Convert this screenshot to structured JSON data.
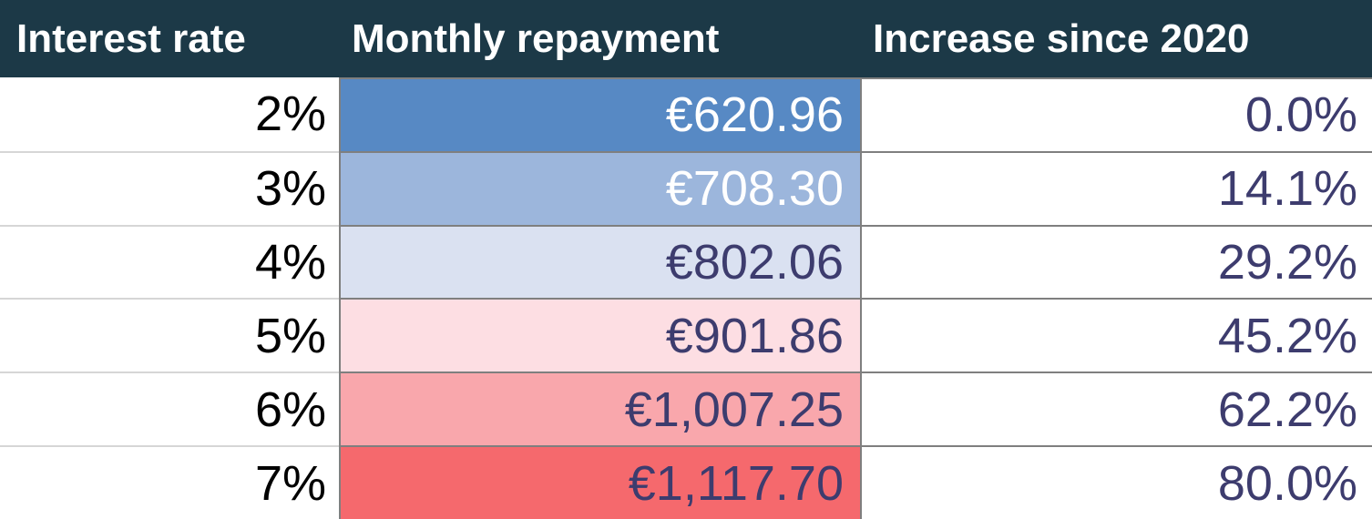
{
  "table": {
    "headers": {
      "rate": "Interest rate",
      "repayment": "Monthly repayment",
      "increase": "Increase since 2020"
    },
    "rows": [
      {
        "rate": "2%",
        "repayment": "€620.96",
        "increase": "0.0%",
        "bg": "#5789c4",
        "text": "#ffffff"
      },
      {
        "rate": "3%",
        "repayment": "€708.30",
        "increase": "14.1%",
        "bg": "#9cb6dc",
        "text": "#ffffff"
      },
      {
        "rate": "4%",
        "repayment": "€802.06",
        "increase": "29.2%",
        "bg": "#dae1f1",
        "text": "#3d3c6e"
      },
      {
        "rate": "5%",
        "repayment": "€901.86",
        "increase": "45.2%",
        "bg": "#fddee3",
        "text": "#3d3c6e"
      },
      {
        "rate": "6%",
        "repayment": "€1,007.25",
        "increase": "62.2%",
        "bg": "#f9a7ac",
        "text": "#3d3c6e"
      },
      {
        "rate": "7%",
        "repayment": "€1,117.70",
        "increase": "80.0%",
        "bg": "#f5696d",
        "text": "#3d3c6e"
      }
    ],
    "colors": {
      "header_bg": "#1c3947",
      "header_text": "#ffffff",
      "rate_text": "#000000",
      "increase_text": "#3d3c6e",
      "cell_border": "#7f7f7f",
      "row_divider": "#d6d6d6"
    }
  },
  "chart_data": {
    "type": "table",
    "title": "",
    "columns": [
      "Interest rate",
      "Monthly repayment",
      "Increase since 2020"
    ],
    "interest_rate_pct": [
      2,
      3,
      4,
      5,
      6,
      7
    ],
    "monthly_repayment_eur": [
      620.96,
      708.3,
      802.06,
      901.86,
      1007.25,
      1117.7
    ],
    "increase_since_2020_pct": [
      0.0,
      14.1,
      29.2,
      45.2,
      62.2,
      80.0
    ],
    "heatmap_column": "Monthly repayment",
    "heatmap_scale": [
      "#5789c4",
      "#9cb6dc",
      "#dae1f1",
      "#fddee3",
      "#f9a7ac",
      "#f5696d"
    ],
    "legend_position": "none",
    "grid": "row dividers only"
  }
}
